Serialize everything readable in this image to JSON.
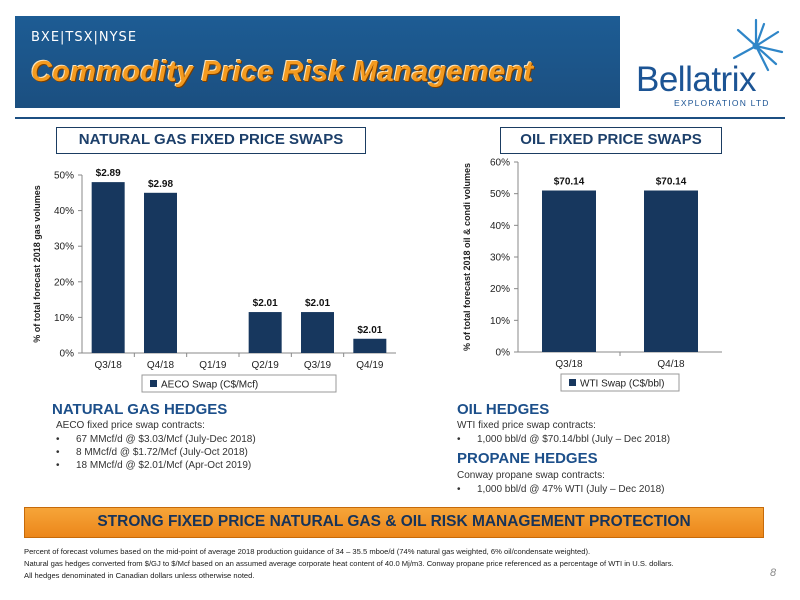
{
  "header": {
    "ticker": "BXE|TSX|NYSE",
    "title": "Commodity Price Risk Management",
    "logo_name": "Bellatrix",
    "logo_sub": "EXPLORATION LTD"
  },
  "sections": {
    "natural_gas_swaps": "NATURAL GAS FIXED PRICE SWAPS",
    "oil_swaps": "OIL FIXED PRICE SWAPS"
  },
  "chart_data": [
    {
      "type": "bar",
      "title": "NATURAL GAS FIXED PRICE SWAPS",
      "categories": [
        "Q3/18",
        "Q4/18",
        "Q1/19",
        "Q2/19",
        "Q3/19",
        "Q4/19"
      ],
      "series": [
        {
          "name": "AECO Swap (C$/Mcf)",
          "values": [
            48,
            45,
            0,
            11.5,
            11.5,
            4
          ]
        }
      ],
      "data_labels": [
        "$2.89",
        "$2.98",
        "",
        "$2.01",
        "$2.01",
        "$2.01"
      ],
      "ylabel": "% of total forecast 2018 gas volumes",
      "xlabel": "",
      "ylim": [
        0,
        50
      ],
      "yticks": [
        "0%",
        "10%",
        "20%",
        "30%",
        "40%",
        "50%"
      ],
      "grid": false,
      "legend": "bottom",
      "color": "#17375e"
    },
    {
      "type": "bar",
      "title": "OIL FIXED PRICE SWAPS",
      "categories": [
        "Q3/18",
        "Q4/18"
      ],
      "series": [
        {
          "name": "WTI Swap (C$/bbl)",
          "values": [
            51,
            51
          ]
        }
      ],
      "data_labels": [
        "$70.14",
        "$70.14"
      ],
      "ylabel": "% of total forecast 2018 oil & condi volumes",
      "xlabel": "",
      "ylim": [
        0,
        60
      ],
      "yticks": [
        "0%",
        "10%",
        "20%",
        "30%",
        "40%",
        "50%",
        "60%"
      ],
      "grid": false,
      "legend": "bottom",
      "color": "#17375e"
    }
  ],
  "hedges": {
    "natural_gas": {
      "title": "NATURAL GAS HEDGES",
      "intro": "AECO fixed price swap contracts:",
      "items": [
        "67 MMcf/d @ $3.03/Mcf (July-Dec 2018)",
        "8 MMcf/d @ $1.72/Mcf (July-Oct 2018)",
        "18 MMcf/d @ $2.01/Mcf (Apr-Oct 2019)"
      ]
    },
    "oil": {
      "title": "OIL HEDGES",
      "intro": "WTI fixed price swap contracts:",
      "items": [
        "1,000 bbl/d @ $70.14/bbl (July – Dec 2018)"
      ]
    },
    "propane": {
      "title": "PROPANE HEDGES",
      "intro": "Conway propane swap contracts:",
      "items": [
        "1,000 bbl/d @ 47% WTI (July – Dec 2018)"
      ]
    }
  },
  "banner": "STRONG FIXED PRICE NATURAL GAS & OIL RISK MANAGEMENT PROTECTION",
  "footnotes": [
    "Percent of forecast volumes based on the mid-point of average 2018 production guidance of 34 – 35.5 mboe/d (74% natural gas weighted, 6% oil/condensate weighted).",
    "Natural gas hedges converted from $/GJ to $/Mcf based on an assumed average corporate heat content of 40.0 Mj/m3.   Conway propane price referenced as a percentage of WTI in U.S. dollars.",
    "All hedges denominated in Canadian dollars unless otherwise noted."
  ],
  "page_number": "8",
  "colors": {
    "header_bg": "#1b4f80",
    "title_orange": "#f39a1f",
    "bar": "#17375e",
    "banner": "#f29224",
    "heading_blue": "#1c4f8a"
  }
}
